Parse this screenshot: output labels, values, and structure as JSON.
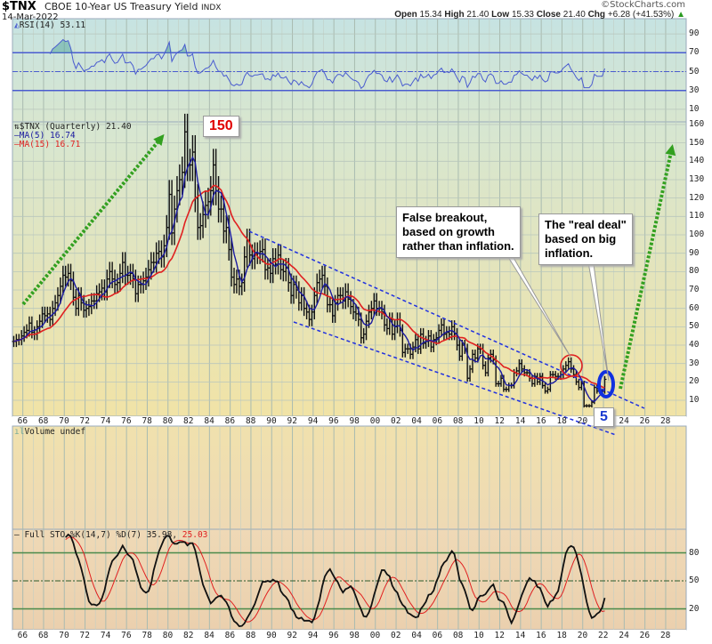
{
  "header": {
    "symbol": "$TNX",
    "name": "CBOE 10-Year US Treasury Yield",
    "exchange": "INDX",
    "date": "14-Mar-2022",
    "watermark": "©StockCharts.com",
    "ohlc": {
      "open_label": "Open",
      "open": "15.34",
      "high_label": "High",
      "high": "21.40",
      "low_label": "Low",
      "low": "15.33",
      "close_label": "Close",
      "close": "21.40",
      "chg_label": "Chg",
      "chg": "+6.28 (+41.53%)"
    }
  },
  "rsi_panel": {
    "legend": "RSI(14) 53.11",
    "ticks": [
      90,
      70,
      50,
      30,
      10
    ],
    "color": "#4a5cd0",
    "fill": "#5aa8a0"
  },
  "price_panel": {
    "legend": "$TNX (Quarterly) 21.40",
    "ma5_legend": "MA(5) 16.74",
    "ma15_legend": "MA(15) 16.71",
    "ma5_color": "#1a1aa0",
    "ma15_color": "#e02020",
    "ticks": [
      160,
      150,
      140,
      130,
      120,
      110,
      100,
      90,
      80,
      70,
      60,
      50,
      40,
      30,
      20,
      10
    ]
  },
  "volume_panel": {
    "legend": "Volume undef"
  },
  "sto_panel": {
    "legend": "Full STO %K(14,7) %D(7) 35.98,",
    "legend_d": "25.03",
    "ticks": [
      80,
      50,
      20
    ]
  },
  "x_ticks": [
    "66",
    "68",
    "70",
    "72",
    "74",
    "76",
    "78",
    "80",
    "82",
    "84",
    "86",
    "88",
    "90",
    "92",
    "94",
    "96",
    "98",
    "00",
    "02",
    "04",
    "06",
    "08",
    "10",
    "12",
    "14",
    "16",
    "18",
    "20",
    "22",
    "24",
    "26",
    "28"
  ],
  "annotations": {
    "peak_label": "150",
    "low_label": "5",
    "false_breakout": [
      "False breakout,",
      "based on growth",
      "rather than inflation."
    ],
    "real_deal": [
      "The \"real deal\"",
      "based on big",
      "inflation."
    ],
    "arrow_color": "#33a020",
    "channel_color": "#2030e0"
  },
  "chart_data": {
    "type": "ohlc-bar",
    "title": "$TNX CBOE 10-Year US Treasury Yield INDX",
    "x_start": "1965-Q1",
    "frequency": "quarterly",
    "xlim": [
      "1965",
      "2030"
    ],
    "ylim": [
      0,
      165
    ],
    "grid": true,
    "close": [
      42,
      43,
      43,
      45,
      47,
      48,
      52,
      47,
      46,
      50,
      53,
      57,
      56,
      57,
      54,
      60,
      63,
      67,
      72,
      78,
      77,
      79,
      75,
      66,
      60,
      67,
      63,
      59,
      60,
      61,
      64,
      64,
      68,
      69,
      71,
      69,
      76,
      80,
      76,
      73,
      74,
      79,
      85,
      78,
      78,
      79,
      76,
      68,
      73,
      73,
      75,
      77,
      81,
      85,
      85,
      90,
      91,
      88,
      94,
      104,
      122,
      101,
      114,
      124,
      130,
      134,
      156,
      138,
      138,
      145,
      120,
      104,
      105,
      111,
      116,
      118,
      124,
      138,
      124,
      114,
      114,
      102,
      104,
      92,
      77,
      73,
      76,
      72,
      74,
      88,
      97,
      89,
      87,
      90,
      90,
      91,
      92,
      81,
      82,
      79,
      87,
      84,
      89,
      81,
      80,
      82,
      74,
      67,
      73,
      70,
      63,
      67,
      60,
      58,
      54,
      58,
      67,
      74,
      76,
      78,
      72,
      62,
      62,
      56,
      63,
      67,
      67,
      64,
      69,
      65,
      61,
      58,
      57,
      54,
      44,
      46,
      53,
      58,
      60,
      64,
      60,
      60,
      58,
      51,
      49,
      54,
      46,
      50,
      54,
      48,
      36,
      38,
      38,
      35,
      39,
      43,
      38,
      46,
      41,
      42,
      45,
      39,
      43,
      44,
      48,
      51,
      46,
      47,
      46,
      50,
      46,
      40,
      34,
      40,
      38,
      22,
      27,
      35,
      33,
      38,
      38,
      29,
      25,
      33,
      35,
      32,
      19,
      19,
      22,
      16,
      16,
      18,
      18,
      25,
      26,
      30,
      27,
      25,
      25,
      22,
      19,
      23,
      20,
      23,
      18,
      15,
      16,
      24,
      24,
      23,
      23,
      24,
      27,
      29,
      31,
      27,
      24,
      20,
      17,
      19,
      7,
      7,
      7,
      9,
      17,
      15,
      15,
      15,
      21.4
    ],
    "series": [
      {
        "name": "MA(5)",
        "last": 16.74
      },
      {
        "name": "MA(15)",
        "last": 16.71
      }
    ]
  }
}
